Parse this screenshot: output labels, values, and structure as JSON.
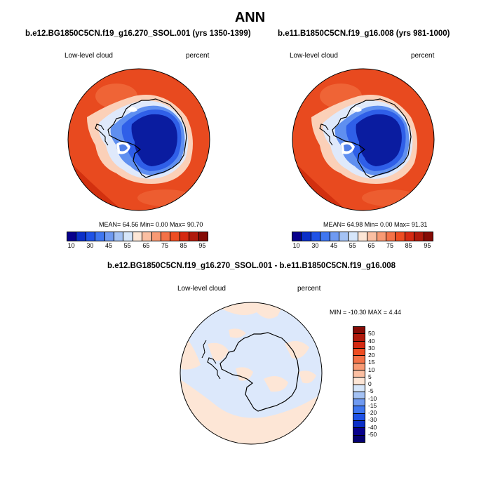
{
  "main_title": "ANN",
  "panels": [
    {
      "case_title": "b.e12.BG1850C5CN.f19_g16.270_SSOL.001 (yrs 1350-1399)",
      "variable": "Low-level cloud",
      "units": "percent",
      "stats": "MEAN= 64.56  Min=  0.00  Max= 90.70"
    },
    {
      "case_title": "b.e11.B1850C5CN.f19_g16.008 (yrs 981-1000)",
      "variable": "Low-level cloud",
      "units": "percent",
      "stats": "MEAN= 64.98  Min=  0.00  Max= 91.31"
    }
  ],
  "diff_panel": {
    "title": "b.e12.BG1850C5CN.f19_g16.270_SSOL.001 - b.e11.B1850C5CN.f19_g16.008",
    "variable": "Low-level cloud",
    "units": "percent",
    "stats": "MIN = -10.30 MAX =  4.44"
  },
  "colorbar_main": {
    "labels": [
      "10",
      "30",
      "45",
      "55",
      "65",
      "75",
      "85",
      "95"
    ],
    "colors": [
      "#08008c",
      "#0b2fc8",
      "#1f52e6",
      "#3f76f0",
      "#6f9af2",
      "#a4c2f4",
      "#d6e6fa",
      "#fde6d6",
      "#fbbfa2",
      "#f89a74",
      "#f47248",
      "#ee4d22",
      "#d52a12",
      "#b01a0c",
      "#850b05"
    ]
  },
  "colorbar_diff": {
    "labels": [
      "50",
      "40",
      "30",
      "20",
      "15",
      "10",
      "5",
      "0",
      "-5",
      "-10",
      "-15",
      "-20",
      "-30",
      "-40",
      "-50"
    ],
    "colors": [
      "#850b05",
      "#b01a0c",
      "#d52a12",
      "#ee4d22",
      "#f47248",
      "#f89a74",
      "#fbbfa2",
      "#fde6d6",
      "#d6e6fa",
      "#a4c2f4",
      "#6f9af2",
      "#3f76f0",
      "#1f52e6",
      "#0b2fc8",
      "#08008c",
      "#050070"
    ]
  }
}
